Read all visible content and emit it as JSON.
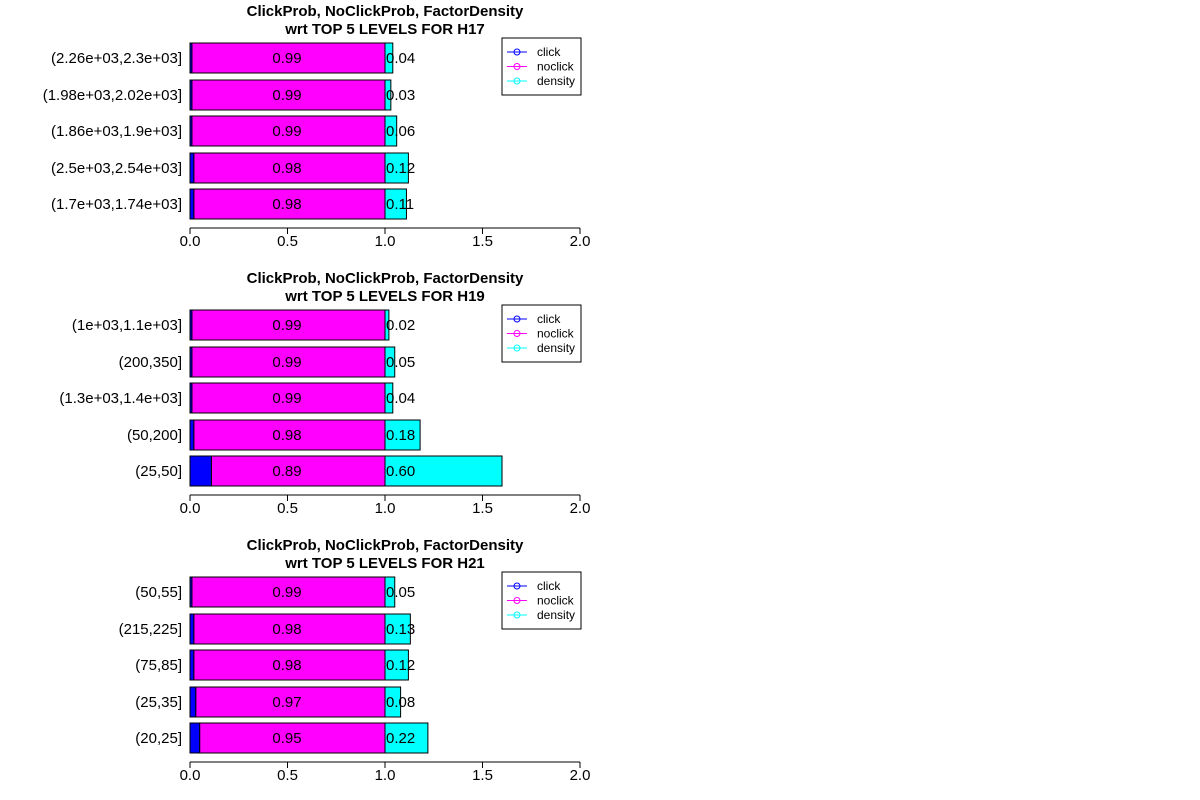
{
  "colors": {
    "click": "#0000ff",
    "noclick": "#ff00ff",
    "density": "#00ffff"
  },
  "chart_data": [
    {
      "type": "bar",
      "orientation": "horizontal",
      "stacked": true,
      "title": "ClickProb, NoClickProb, FactorDensity",
      "subtitle": "wrt TOP 5 LEVELS FOR  H17",
      "categories": [
        "(2.26e+03,2.3e+03]",
        "(1.98e+03,2.02e+03]",
        "(1.86e+03,1.9e+03]",
        "(2.5e+03,2.54e+03]",
        "(1.7e+03,1.74e+03]"
      ],
      "series": [
        {
          "name": "click",
          "values": [
            0.01,
            0.01,
            0.01,
            0.02,
            0.02
          ]
        },
        {
          "name": "noclick",
          "values": [
            0.99,
            0.99,
            0.99,
            0.98,
            0.98
          ]
        },
        {
          "name": "density",
          "values": [
            0.04,
            0.03,
            0.06,
            0.12,
            0.11
          ]
        }
      ],
      "value_labels": {
        "noclick": [
          "0.99",
          "0.99",
          "0.99",
          "0.98",
          "0.98"
        ],
        "density": [
          "0.04",
          "0.03",
          "0.06",
          "0.12",
          "0.11"
        ]
      },
      "xlim": [
        0,
        2
      ],
      "xticks": [
        "0.0",
        "0.5",
        "1.0",
        "1.5",
        "2.0"
      ],
      "legend": [
        "click",
        "noclick",
        "density"
      ],
      "legend_position": "top-right"
    },
    {
      "type": "bar",
      "orientation": "horizontal",
      "stacked": true,
      "title": "ClickProb, NoClickProb, FactorDensity",
      "subtitle": "wrt TOP 5 LEVELS FOR  H19",
      "categories": [
        "(1e+03,1.1e+03]",
        "(200,350]",
        "(1.3e+03,1.4e+03]",
        "(50,200]",
        "(25,50]"
      ],
      "series": [
        {
          "name": "click",
          "values": [
            0.01,
            0.01,
            0.01,
            0.02,
            0.11
          ]
        },
        {
          "name": "noclick",
          "values": [
            0.99,
            0.99,
            0.99,
            0.98,
            0.89
          ]
        },
        {
          "name": "density",
          "values": [
            0.02,
            0.05,
            0.04,
            0.18,
            0.6
          ]
        }
      ],
      "value_labels": {
        "noclick": [
          "0.99",
          "0.99",
          "0.99",
          "0.98",
          "0.89"
        ],
        "density": [
          "0.02",
          "0.05",
          "0.04",
          "0.18",
          "0.60"
        ]
      },
      "xlim": [
        0,
        2
      ],
      "xticks": [
        "0.0",
        "0.5",
        "1.0",
        "1.5",
        "2.0"
      ],
      "legend": [
        "click",
        "noclick",
        "density"
      ],
      "legend_position": "top-right"
    },
    {
      "type": "bar",
      "orientation": "horizontal",
      "stacked": true,
      "title": "ClickProb, NoClickProb, FactorDensity",
      "subtitle": "wrt TOP 5 LEVELS FOR  H21",
      "categories": [
        "(50,55]",
        "(215,225]",
        "(75,85]",
        "(25,35]",
        "(20,25]"
      ],
      "series": [
        {
          "name": "click",
          "values": [
            0.01,
            0.02,
            0.02,
            0.03,
            0.05
          ]
        },
        {
          "name": "noclick",
          "values": [
            0.99,
            0.98,
            0.98,
            0.97,
            0.95
          ]
        },
        {
          "name": "density",
          "values": [
            0.05,
            0.13,
            0.12,
            0.08,
            0.22
          ]
        }
      ],
      "value_labels": {
        "noclick": [
          "0.99",
          "0.98",
          "0.98",
          "0.97",
          "0.95"
        ],
        "density": [
          "0.05",
          "0.13",
          "0.12",
          "0.08",
          "0.22"
        ]
      },
      "xlim": [
        0,
        2
      ],
      "xticks": [
        "0.0",
        "0.5",
        "1.0",
        "1.5",
        "2.0"
      ],
      "legend": [
        "click",
        "noclick",
        "density"
      ],
      "legend_position": "top-right"
    }
  ]
}
